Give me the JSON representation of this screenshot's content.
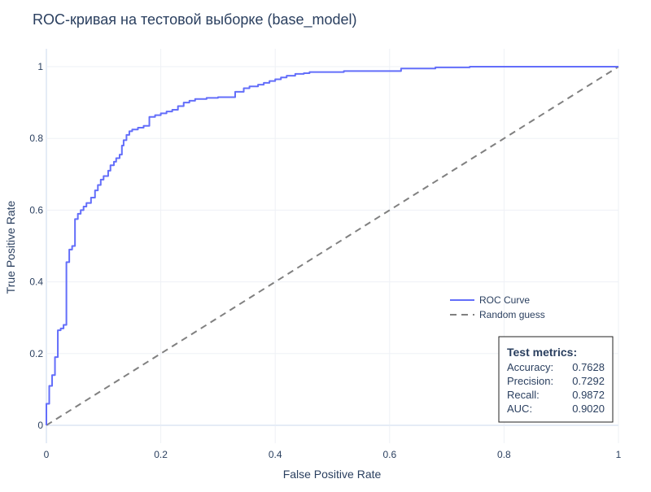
{
  "chart_data": {
    "type": "line",
    "title": "ROC-кривая на тестовой выборке (base_model)",
    "xlabel": "False Positive Rate",
    "ylabel": "True Positive Rate",
    "xlim": [
      0,
      1
    ],
    "ylim": [
      -0.05,
      1.05
    ],
    "x_ticks": [
      0,
      0.2,
      0.4,
      0.6,
      0.8,
      1
    ],
    "x_tick_labels": [
      "0",
      "0.2",
      "0.4",
      "0.6",
      "0.8",
      "1"
    ],
    "y_ticks": [
      0,
      0.2,
      0.4,
      0.6,
      0.8,
      1
    ],
    "y_tick_labels": [
      "0",
      "0.2",
      "0.4",
      "0.6",
      "0.8",
      "1"
    ],
    "grid": true,
    "legend_position": "right",
    "series": [
      {
        "name": "ROC Curve",
        "color": "#636efa",
        "line_style": "solid",
        "x": [
          0,
          0,
          0.005,
          0.005,
          0.01,
          0.01,
          0.015,
          0.015,
          0.02,
          0.02,
          0.025,
          0.025,
          0.03,
          0.03,
          0.035,
          0.035,
          0.04,
          0.04,
          0.045,
          0.045,
          0.05,
          0.05,
          0.055,
          0.055,
          0.06,
          0.06,
          0.065,
          0.065,
          0.07,
          0.07,
          0.078,
          0.078,
          0.085,
          0.085,
          0.09,
          0.09,
          0.095,
          0.095,
          0.1,
          0.1,
          0.108,
          0.108,
          0.112,
          0.112,
          0.118,
          0.118,
          0.122,
          0.122,
          0.128,
          0.128,
          0.132,
          0.132,
          0.135,
          0.135,
          0.14,
          0.14,
          0.145,
          0.145,
          0.15,
          0.15,
          0.16,
          0.16,
          0.17,
          0.17,
          0.18,
          0.18,
          0.19,
          0.19,
          0.2,
          0.2,
          0.21,
          0.21,
          0.22,
          0.22,
          0.23,
          0.23,
          0.24,
          0.24,
          0.25,
          0.25,
          0.26,
          0.26,
          0.28,
          0.28,
          0.3,
          0.3,
          0.33,
          0.33,
          0.345,
          0.345,
          0.355,
          0.355,
          0.37,
          0.37,
          0.38,
          0.38,
          0.39,
          0.39,
          0.4,
          0.4,
          0.41,
          0.41,
          0.42,
          0.42,
          0.435,
          0.435,
          0.45,
          0.45,
          0.46,
          0.46,
          0.52,
          0.52,
          0.62,
          0.62,
          0.68,
          0.68,
          0.74,
          0.74,
          1.0
        ],
        "y": [
          0,
          0.06,
          0.06,
          0.11,
          0.11,
          0.14,
          0.14,
          0.19,
          0.19,
          0.265,
          0.265,
          0.27,
          0.27,
          0.28,
          0.28,
          0.455,
          0.455,
          0.49,
          0.49,
          0.5,
          0.5,
          0.575,
          0.575,
          0.59,
          0.59,
          0.6,
          0.6,
          0.61,
          0.61,
          0.62,
          0.62,
          0.635,
          0.635,
          0.655,
          0.655,
          0.67,
          0.67,
          0.685,
          0.685,
          0.695,
          0.695,
          0.71,
          0.71,
          0.725,
          0.725,
          0.735,
          0.735,
          0.745,
          0.745,
          0.755,
          0.755,
          0.78,
          0.78,
          0.795,
          0.795,
          0.81,
          0.81,
          0.82,
          0.82,
          0.825,
          0.825,
          0.83,
          0.83,
          0.835,
          0.835,
          0.86,
          0.86,
          0.865,
          0.865,
          0.87,
          0.87,
          0.875,
          0.875,
          0.88,
          0.88,
          0.89,
          0.89,
          0.9,
          0.9,
          0.905,
          0.905,
          0.91,
          0.91,
          0.913,
          0.913,
          0.915,
          0.915,
          0.93,
          0.93,
          0.94,
          0.94,
          0.945,
          0.945,
          0.95,
          0.95,
          0.955,
          0.955,
          0.96,
          0.96,
          0.965,
          0.965,
          0.97,
          0.97,
          0.975,
          0.975,
          0.98,
          0.98,
          0.982,
          0.982,
          0.985,
          0.985,
          0.988,
          0.988,
          0.995,
          0.995,
          0.998,
          0.998,
          1.0,
          1.0
        ]
      },
      {
        "name": "Random guess",
        "color": "#808080",
        "line_style": "dashed",
        "x": [
          0,
          1
        ],
        "y": [
          0,
          1
        ]
      }
    ],
    "annotation": {
      "heading": "Test metrics:",
      "metrics": [
        {
          "label": "Accuracy:",
          "value": "0.7628"
        },
        {
          "label": "Precision:",
          "value": "0.7292"
        },
        {
          "label": "Recall:",
          "value": "0.9872"
        },
        {
          "label": "AUC:",
          "value": "0.9020"
        }
      ]
    }
  }
}
